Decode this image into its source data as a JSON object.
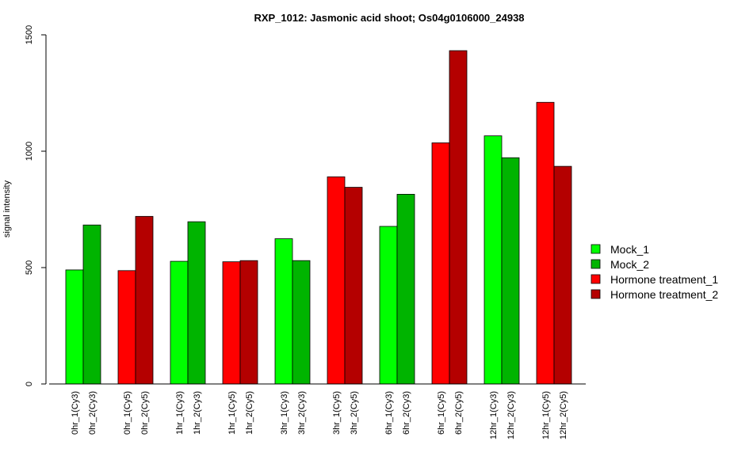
{
  "chart_data": {
    "type": "bar",
    "title": "RXP_1012: Jasmonic acid shoot; Os04g0106000_24938",
    "xlabel": "",
    "ylabel": "signal intensity",
    "ylim": [
      0,
      1500
    ],
    "yticks": [
      0,
      500,
      1000,
      1500
    ],
    "legend_position": "right",
    "legend": [
      {
        "name": "Mock_1",
        "color": "#00ff00"
      },
      {
        "name": "Mock_2",
        "color": "#00b400"
      },
      {
        "name": "Hormone treatment_1",
        "color": "#ff0000"
      },
      {
        "name": "Hormone treatment_2",
        "color": "#b40000"
      }
    ],
    "bars": [
      {
        "label": "0hr_1(Cy3)",
        "value": 490,
        "color": "#00ff00"
      },
      {
        "label": "0hr_2(Cy3)",
        "value": 683,
        "color": "#00b400"
      },
      {
        "label": "0hr_1(Cy5)",
        "value": 487,
        "color": "#ff0000"
      },
      {
        "label": "0hr_2(Cy5)",
        "value": 720,
        "color": "#b40000"
      },
      {
        "label": "1hr_1(Cy3)",
        "value": 527,
        "color": "#00ff00"
      },
      {
        "label": "1hr_2(Cy3)",
        "value": 697,
        "color": "#00b400"
      },
      {
        "label": "1hr_1(Cy5)",
        "value": 525,
        "color": "#ff0000"
      },
      {
        "label": "1hr_2(Cy5)",
        "value": 530,
        "color": "#b40000"
      },
      {
        "label": "3hr_1(Cy3)",
        "value": 624,
        "color": "#00ff00"
      },
      {
        "label": "3hr_2(Cy3)",
        "value": 530,
        "color": "#00b400"
      },
      {
        "label": "3hr_1(Cy5)",
        "value": 890,
        "color": "#ff0000"
      },
      {
        "label": "3hr_2(Cy5)",
        "value": 845,
        "color": "#b40000"
      },
      {
        "label": "6hr_1(Cy3)",
        "value": 677,
        "color": "#00ff00"
      },
      {
        "label": "6hr_2(Cy3)",
        "value": 815,
        "color": "#00b400"
      },
      {
        "label": "6hr_1(Cy5)",
        "value": 1036,
        "color": "#ff0000"
      },
      {
        "label": "6hr_2(Cy5)",
        "value": 1432,
        "color": "#b40000"
      },
      {
        "label": "12hr_1(Cy3)",
        "value": 1066,
        "color": "#00ff00"
      },
      {
        "label": "12hr_2(Cy3)",
        "value": 972,
        "color": "#00b400"
      },
      {
        "label": "12hr_1(Cy5)",
        "value": 1210,
        "color": "#ff0000"
      },
      {
        "label": "12hr_2(Cy5)",
        "value": 935,
        "color": "#b40000"
      }
    ]
  }
}
